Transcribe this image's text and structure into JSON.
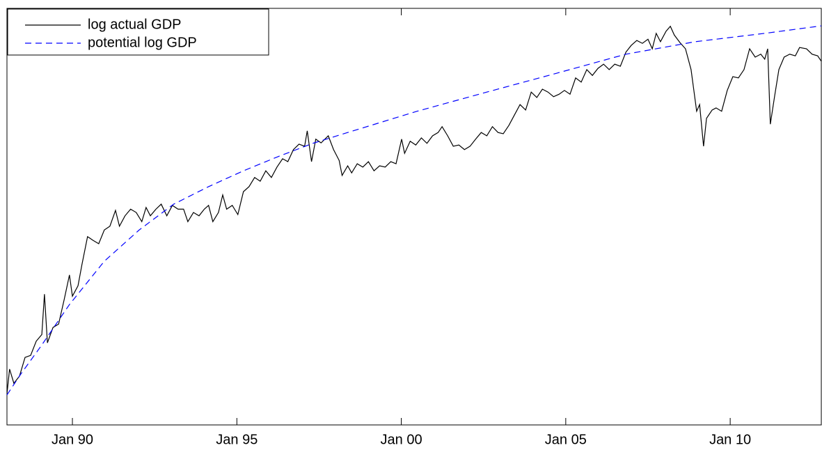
{
  "chart_data": {
    "type": "line",
    "xlim": [
      1988.01,
      2012.77
    ],
    "ylim": [
      0,
      100
    ],
    "xticks": [
      {
        "value": 1990,
        "label": "Jan 90"
      },
      {
        "value": 1995,
        "label": "Jan 95"
      },
      {
        "value": 2000,
        "label": "Jan 00"
      },
      {
        "value": 2005,
        "label": "Jan 05"
      },
      {
        "value": 2010,
        "label": "Jan 10"
      }
    ],
    "legend": "upper left",
    "series": [
      {
        "name": "log actual GDP",
        "color": "#000000",
        "linestyle": "solid",
        "x": [
          1988.01,
          1988.09,
          1988.22,
          1988.39,
          1988.56,
          1988.73,
          1988.9,
          1989.07,
          1989.15,
          1989.24,
          1989.41,
          1989.58,
          1989.75,
          1989.91,
          1990.0,
          1990.17,
          1990.29,
          1990.46,
          1990.63,
          1990.8,
          1990.97,
          1991.14,
          1991.31,
          1991.43,
          1991.6,
          1991.77,
          1991.94,
          1992.11,
          1992.24,
          1992.37,
          1992.54,
          1992.7,
          1992.87,
          1993.04,
          1993.21,
          1993.38,
          1993.51,
          1993.68,
          1993.85,
          1994.01,
          1994.14,
          1994.27,
          1994.44,
          1994.57,
          1994.69,
          1994.86,
          1995.03,
          1995.2,
          1995.37,
          1995.54,
          1995.71,
          1995.88,
          1996.05,
          1996.22,
          1996.39,
          1996.55,
          1996.72,
          1996.89,
          1997.06,
          1997.14,
          1997.27,
          1997.4,
          1997.56,
          1997.78,
          1997.94,
          1998.11,
          1998.2,
          1998.37,
          1998.49,
          1998.66,
          1998.83,
          1999.0,
          1999.17,
          1999.34,
          1999.51,
          1999.68,
          1999.84,
          2000.01,
          2000.1,
          2000.27,
          2000.44,
          2000.61,
          2000.78,
          2000.95,
          2001.12,
          2001.24,
          2001.41,
          2001.58,
          2001.75,
          2001.92,
          2002.09,
          2002.26,
          2002.43,
          2002.6,
          2002.77,
          2002.94,
          2003.1,
          2003.27,
          2003.44,
          2003.61,
          2003.78,
          2003.95,
          2004.12,
          2004.29,
          2004.46,
          2004.63,
          2004.8,
          2004.96,
          2005.13,
          2005.3,
          2005.47,
          2005.64,
          2005.81,
          2005.98,
          2006.15,
          2006.32,
          2006.49,
          2006.66,
          2006.83,
          2006.99,
          2007.16,
          2007.33,
          2007.5,
          2007.63,
          2007.75,
          2007.88,
          2008.05,
          2008.18,
          2008.3,
          2008.47,
          2008.64,
          2008.81,
          2008.98,
          2009.07,
          2009.19,
          2009.28,
          2009.45,
          2009.57,
          2009.74,
          2009.91,
          2010.08,
          2010.25,
          2010.42,
          2010.59,
          2010.76,
          2010.93,
          2011.05,
          2011.14,
          2011.22,
          2011.35,
          2011.48,
          2011.64,
          2011.81,
          2011.98,
          2012.11,
          2012.32,
          2012.49,
          2012.66,
          2012.77
        ],
        "values": [
          7.5,
          13.4,
          10.0,
          11.7,
          16.2,
          16.7,
          20.1,
          21.7,
          31.4,
          19.7,
          23.4,
          24.2,
          30.1,
          36.0,
          30.9,
          33.4,
          38.5,
          45.2,
          44.3,
          43.5,
          46.8,
          47.7,
          51.5,
          47.7,
          50.2,
          51.8,
          51.0,
          48.8,
          52.2,
          50.2,
          51.8,
          53.0,
          50.2,
          52.7,
          51.8,
          51.8,
          48.8,
          51.0,
          50.2,
          51.8,
          52.7,
          48.8,
          51.0,
          55.2,
          51.8,
          52.7,
          50.5,
          56.0,
          57.2,
          59.4,
          58.5,
          61.0,
          59.4,
          61.9,
          63.9,
          63.2,
          66.1,
          67.4,
          66.9,
          70.6,
          63.2,
          68.6,
          67.7,
          69.4,
          66.1,
          63.5,
          59.9,
          62.2,
          60.5,
          62.7,
          61.9,
          63.2,
          61.0,
          62.2,
          61.9,
          63.2,
          62.7,
          68.6,
          65.2,
          68.1,
          67.2,
          68.9,
          67.6,
          69.4,
          70.2,
          71.6,
          69.4,
          66.9,
          67.2,
          66.1,
          66.9,
          68.6,
          70.2,
          69.4,
          71.6,
          70.2,
          69.9,
          71.9,
          74.4,
          76.9,
          75.6,
          79.9,
          78.6,
          80.6,
          79.9,
          78.8,
          79.4,
          80.3,
          79.4,
          83.3,
          82.3,
          85.3,
          83.9,
          85.6,
          86.6,
          85.3,
          86.6,
          86.1,
          89.5,
          91.1,
          92.3,
          91.6,
          92.6,
          90.3,
          94.0,
          92.0,
          94.5,
          95.7,
          93.6,
          91.8,
          90.3,
          85.3,
          75.3,
          76.9,
          66.9,
          73.6,
          75.6,
          76.1,
          75.3,
          80.3,
          83.6,
          83.3,
          85.3,
          90.3,
          88.3,
          89.0,
          87.8,
          90.3,
          72.2,
          78.9,
          85.3,
          88.3,
          89.0,
          88.6,
          90.6,
          90.3,
          89.0,
          88.6,
          87.3
        ]
      },
      {
        "name": "potential log GDP",
        "color": "#0000ff",
        "linestyle": "dashed",
        "x": [
          1988.01,
          1988.43,
          1989.07,
          1989.91,
          1990.97,
          1992.03,
          1993.08,
          1994.14,
          1995.2,
          1996.25,
          1997.31,
          1998.37,
          2000.48,
          2002.6,
          2004.71,
          2006.83,
          2008.94,
          2011.05,
          2012.77
        ],
        "values": [
          7.2,
          12.2,
          19.2,
          28.9,
          39.3,
          46.8,
          53.0,
          57.2,
          61.0,
          64.4,
          67.6,
          70.2,
          75.3,
          79.9,
          84.4,
          89.0,
          92.0,
          94.0,
          95.8
        ]
      }
    ]
  }
}
